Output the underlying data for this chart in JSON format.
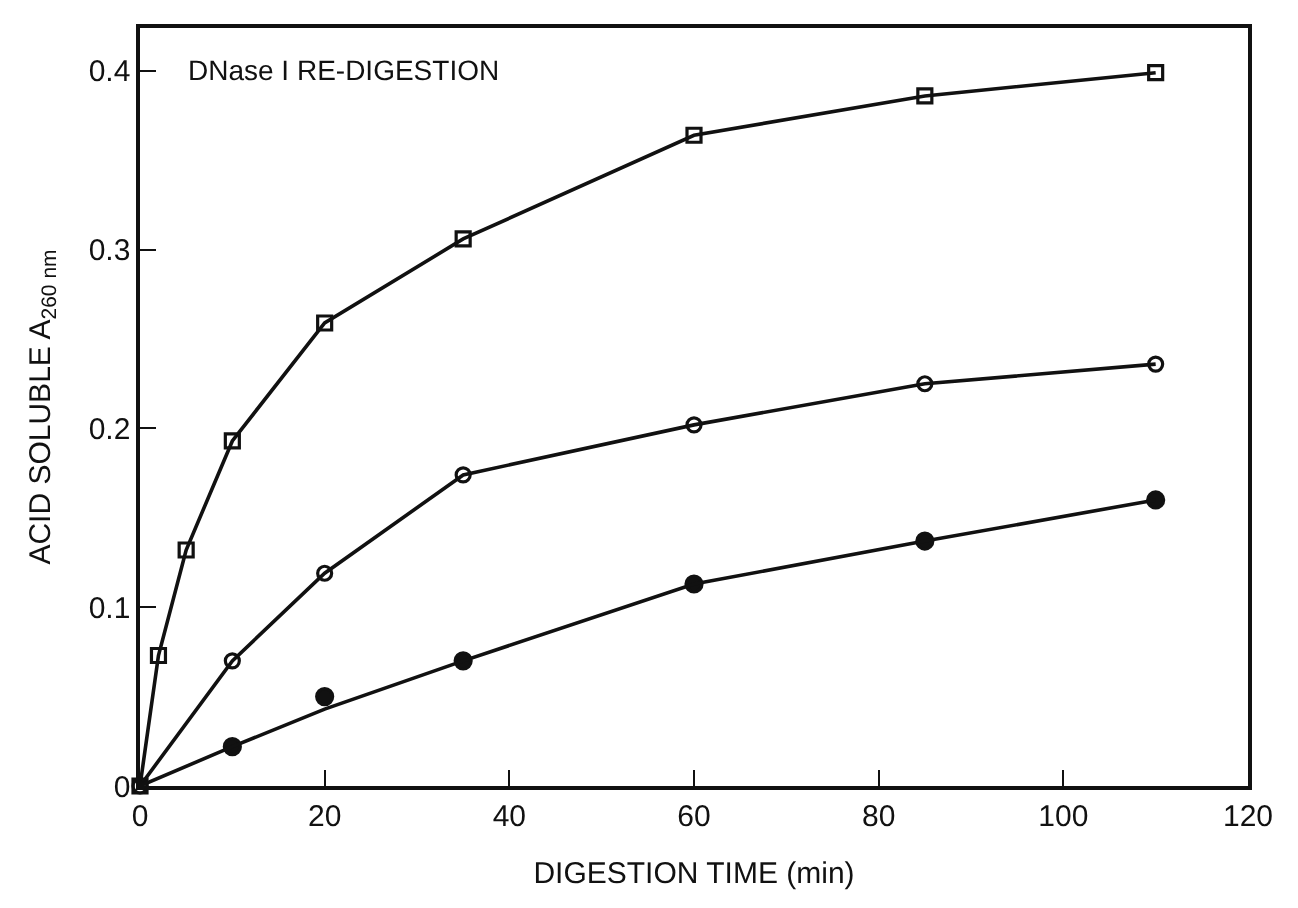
{
  "chart_data": {
    "type": "line",
    "xlabel": "DIGESTION TIME (min)",
    "ylabel": "ACID SOLUBLE A$_{260 nm}$",
    "annotations": [
      "DNase I RE-DIGESTION"
    ],
    "xlim": [
      0,
      120
    ],
    "xticks": [
      0,
      20,
      40,
      60,
      80,
      100,
      120
    ],
    "ylim": [
      0,
      0.424
    ],
    "yticks": [
      0,
      0.1,
      0.2,
      0.3,
      0.4
    ],
    "line_style": "solid",
    "series": [
      {
        "marker": "square",
        "color": "#111111",
        "x": [
          0,
          2,
          5,
          10,
          20,
          35,
          60,
          85,
          110
        ],
        "values": [
          0,
          0.073,
          0.132,
          0.193,
          0.259,
          0.306,
          0.364,
          0.386,
          0.399
        ]
      },
      {
        "type": "line",
        "marker": "circle",
        "color": "#111111",
        "x": [
          0,
          10,
          20,
          35,
          60,
          85,
          110
        ],
        "values": [
          0,
          0.07,
          0.119,
          0.174,
          0.202,
          0.225,
          0.236
        ]
      },
      {
        "type": "scatter",
        "marker": "circle",
        "color": "#111111",
        "x": [
          10,
          20,
          35,
          60,
          85,
          110
        ],
        "values": [
          0.022,
          0.05,
          0.07,
          0.113,
          0.137,
          0.16
        ]
      },
      {
        "type": "line",
        "marker": "none",
        "color": "#111111",
        "x": [
          0,
          10,
          20,
          35,
          60,
          85,
          110
        ],
        "values": [
          0,
          0.022,
          0.043,
          0.07,
          0.113,
          0.137,
          0.16
        ]
      }
    ]
  }
}
